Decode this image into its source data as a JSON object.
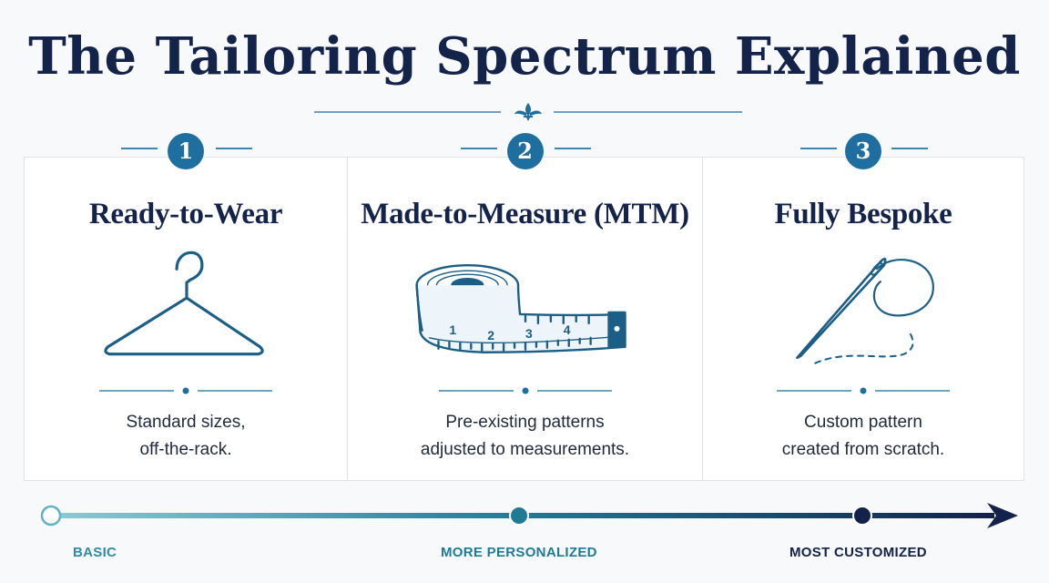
{
  "title": "The Tailoring Spectrum Explained",
  "panels": [
    {
      "number": "1",
      "heading": "Ready-to-Wear",
      "description_line1": "Standard sizes,",
      "description_line2": "off-the-rack.",
      "icon": "hanger-icon"
    },
    {
      "number": "2",
      "heading": "Made-to-Measure (MTM)",
      "description_line1": "Pre-existing patterns",
      "description_line2": "adjusted to measurements.",
      "icon": "measuring-tape-icon",
      "tape_marks": [
        "1",
        "2",
        "3",
        "4"
      ]
    },
    {
      "number": "3",
      "heading": "Fully Bespoke",
      "description_line1": "Custom pattern",
      "description_line2": "created from scratch.",
      "icon": "needle-thread-icon"
    }
  ],
  "spectrum": {
    "labels": [
      "BASIC",
      "MORE PERSONALIZED",
      "MOST CUSTOMIZED"
    ],
    "colors": {
      "start": "#8ccbd6",
      "mid": "#1f7a95",
      "end": "#13224a"
    }
  }
}
